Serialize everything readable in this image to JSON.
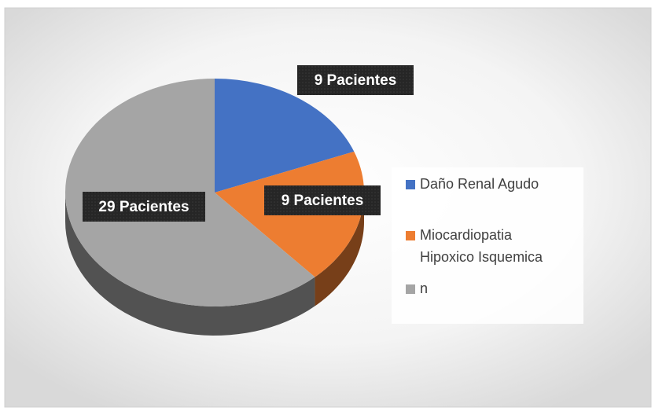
{
  "chart_data": {
    "type": "pie",
    "categories": [
      "Daño Renal Agudo",
      "Miocardiopatia Hipoxico Isquemica",
      "n"
    ],
    "values": [
      9,
      9,
      29
    ],
    "value_labels": [
      "9 Pacientes",
      "9 Pacientes",
      "29 Pacientes"
    ],
    "colors": [
      "#4472c4",
      "#ed7d31",
      "#a5a5a5"
    ],
    "legend": "right"
  }
}
